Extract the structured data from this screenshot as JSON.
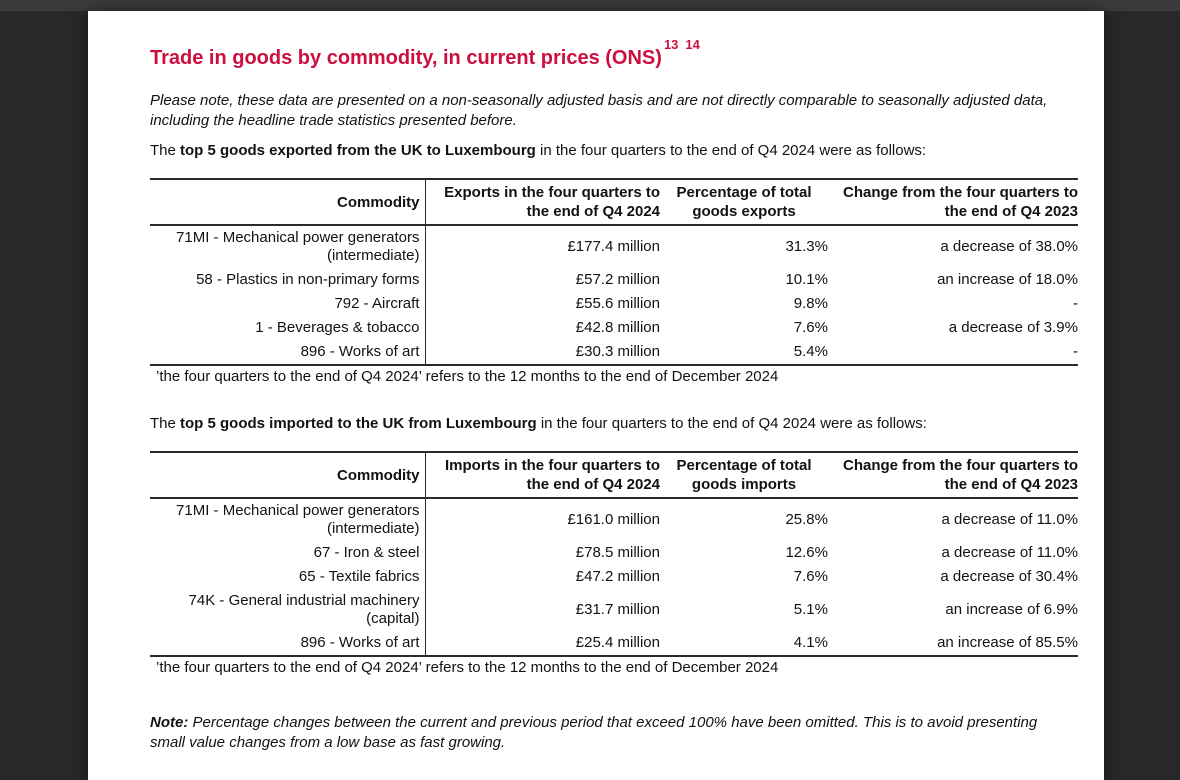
{
  "viewer": {
    "top_bar_color": "#3b3b3b",
    "background_color": "#282828"
  },
  "colors": {
    "title_red": "#cd0f3f",
    "text": "#121212",
    "table_rule": "#2a2a2a"
  },
  "title": {
    "text": "Trade in goods by commodity, in current prices (ONS)",
    "footnote_refs": [
      "13",
      "14"
    ]
  },
  "disclaimer": "Please note, these data are presented on a non-seasonally adjusted basis and are not directly comparable to seasonally adjusted data, including the headline trade statistics presented before.",
  "exports_section": {
    "intro_prefix": "The ",
    "intro_bold": "top 5 goods exported from the UK to Luxembourg",
    "intro_suffix": " in the four quarters to the end of Q4 2024 were as follows:",
    "table": {
      "headers": [
        "Commodity",
        "Exports in the four quarters to the end of Q4 2024",
        "Percentage of total goods exports",
        "Change from the four quarters to the end of Q4 2023"
      ],
      "rows": [
        [
          "71MI - Mechanical power generators (intermediate)",
          "£177.4 million",
          "31.3%",
          "a decrease of 38.0%"
        ],
        [
          "58 - Plastics in non-primary forms",
          "£57.2 million",
          "10.1%",
          "an increase of 18.0%"
        ],
        [
          "792 - Aircraft",
          "£55.6 million",
          "9.8%",
          "-"
        ],
        [
          "1 - Beverages & tobacco",
          "£42.8 million",
          "7.6%",
          "a decrease of 3.9%"
        ],
        [
          "896 - Works of art",
          "£30.3 million",
          "5.4%",
          "-"
        ]
      ]
    },
    "footnote": "’the four quarters to the end of Q4 2024’ refers to the 12 months to the end of December 2024"
  },
  "imports_section": {
    "intro_prefix": "The ",
    "intro_bold": "top 5 goods imported to the UK from Luxembourg",
    "intro_suffix": " in the four quarters to the end of Q4 2024 were as follows:",
    "table": {
      "headers": [
        "Commodity",
        "Imports in the four quarters to the end of Q4 2024",
        "Percentage of total goods imports",
        "Change from the four quarters to the end of Q4 2023"
      ],
      "rows": [
        [
          "71MI - Mechanical power generators (intermediate)",
          "£161.0 million",
          "25.8%",
          "a decrease of 11.0%"
        ],
        [
          "67 - Iron & steel",
          "£78.5 million",
          "12.6%",
          "a decrease of 11.0%"
        ],
        [
          "65 - Textile fabrics",
          "£47.2 million",
          "7.6%",
          "a decrease of 30.4%"
        ],
        [
          "74K - General industrial machinery (capital)",
          "£31.7 million",
          "5.1%",
          "an increase of 6.9%"
        ],
        [
          "896 - Works of art",
          "£25.4 million",
          "4.1%",
          "an increase of 85.5%"
        ]
      ]
    },
    "footnote": "’the four quarters to the end of Q4 2024’ refers to the 12 months to the end of December 2024"
  },
  "note": {
    "label": "Note:",
    "text": " Percentage changes between the current and previous period that exceed 100% have been omitted. This is to avoid presenting small value changes from a low base as fast growing."
  }
}
